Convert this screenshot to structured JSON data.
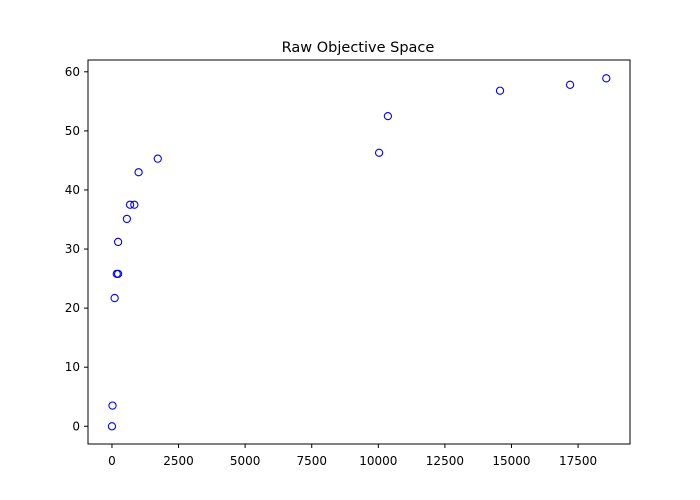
{
  "chart_data": {
    "type": "scatter",
    "title": "Raw Objective Space",
    "xlabel": "",
    "ylabel": "",
    "xlim": [
      -900,
      19450
    ],
    "ylim": [
      -3,
      62
    ],
    "x_ticks": [
      0,
      2500,
      5000,
      7500,
      10000,
      12500,
      15000,
      17500
    ],
    "x_tick_labels": [
      "0",
      "2500",
      "5000",
      "7500",
      "10000",
      "12500",
      "15000",
      "17500"
    ],
    "y_ticks": [
      0,
      10,
      20,
      30,
      40,
      50,
      60
    ],
    "y_tick_labels": [
      "0",
      "10",
      "20",
      "30",
      "40",
      "50",
      "60"
    ],
    "grid": false,
    "marker": "open-circle",
    "marker_color": "#0000ff",
    "points": [
      {
        "x": 0,
        "y": 0
      },
      {
        "x": 20,
        "y": 3.5
      },
      {
        "x": 100,
        "y": 21.7
      },
      {
        "x": 180,
        "y": 25.8
      },
      {
        "x": 230,
        "y": 25.8
      },
      {
        "x": 230,
        "y": 31.2
      },
      {
        "x": 560,
        "y": 35.1
      },
      {
        "x": 680,
        "y": 37.5
      },
      {
        "x": 840,
        "y": 37.5
      },
      {
        "x": 1000,
        "y": 43.0
      },
      {
        "x": 1720,
        "y": 45.3
      },
      {
        "x": 10030,
        "y": 46.3
      },
      {
        "x": 10360,
        "y": 52.5
      },
      {
        "x": 14570,
        "y": 56.8
      },
      {
        "x": 17200,
        "y": 57.8
      },
      {
        "x": 18560,
        "y": 58.9
      }
    ]
  }
}
